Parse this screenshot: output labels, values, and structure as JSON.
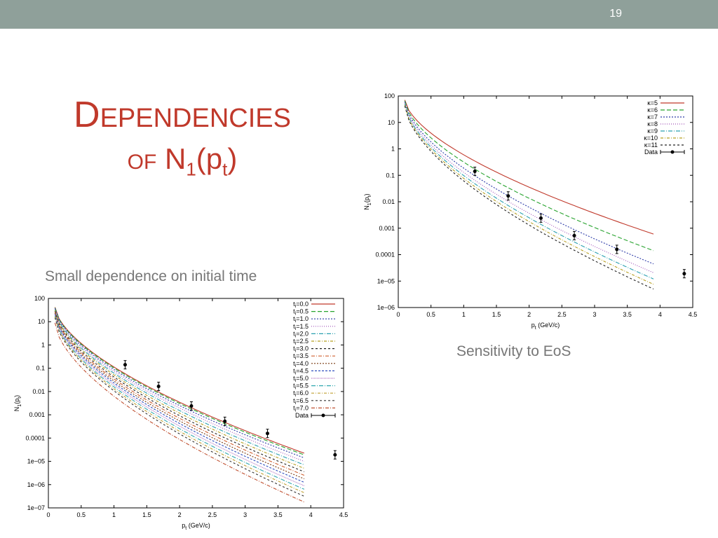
{
  "slide": {
    "number": "19",
    "title_line1": "Dependencies",
    "title_line2_prefix": "of",
    "title_line2_formula": "N",
    "title_sub1": "1",
    "title_open": "(p",
    "title_sub2": "t",
    "title_close": ")",
    "caption_left": "Small dependence on initial time",
    "caption_right": "Sensitivity to EoS"
  },
  "chart_data": [
    {
      "type": "line",
      "xlabel": "p",
      "xlabel_sub": "t",
      "xlabel_unit": " (GeV/c)",
      "ylabel": "N",
      "ylabel_sub": "1",
      "ylabel_arg": "(p",
      "ylabel_arg_sub": "t",
      "ylabel_close": ")",
      "xlim": [
        0,
        4.5
      ],
      "ylim_log10": [
        -6,
        2
      ],
      "yscale": "log",
      "x_ticks": [
        "0",
        "0.5",
        "1",
        "1.5",
        "2",
        "2.5",
        "3",
        "3.5",
        "4",
        "4.5"
      ],
      "y_ticks": [
        "1e−06",
        "1e−05",
        "0.0001",
        "0.001",
        "0.01",
        "0.1",
        "1",
        "10",
        "100"
      ],
      "legend_position": "top-right",
      "series": [
        {
          "name": "κ=5",
          "color": "#c0392b",
          "dash": "",
          "x_range": [
            0.1,
            3.9
          ],
          "log10_y": [
            1.85,
            -3.22
          ]
        },
        {
          "name": "κ=6",
          "color": "#27a32e",
          "dash": "6,3",
          "x_range": [
            0.1,
            3.9
          ],
          "log10_y": [
            1.82,
            -3.85
          ]
        },
        {
          "name": "κ=7",
          "color": "#2c3aa8",
          "dash": "2,2",
          "x_range": [
            0.1,
            3.9
          ],
          "log10_y": [
            1.78,
            -4.35
          ]
        },
        {
          "name": "κ=8",
          "color": "#a050b8",
          "dash": "1,2",
          "x_range": [
            0.1,
            3.9
          ],
          "log10_y": [
            1.74,
            -4.68
          ]
        },
        {
          "name": "κ=9",
          "color": "#2aa0b0",
          "dash": "6,2,1,2",
          "x_range": [
            0.1,
            3.9
          ],
          "log10_y": [
            1.7,
            -4.92
          ]
        },
        {
          "name": "κ=10",
          "color": "#b8a020",
          "dash": "4,2,1,2",
          "x_range": [
            0.1,
            3.9
          ],
          "log10_y": [
            1.66,
            -5.12
          ]
        },
        {
          "name": "κ=11",
          "color": "#222222",
          "dash": "3,3",
          "x_range": [
            0.1,
            3.9
          ],
          "log10_y": [
            1.62,
            -5.3
          ]
        }
      ],
      "data_points": {
        "name": "Data",
        "x": [
          1.17,
          1.68,
          2.18,
          2.69,
          3.34,
          4.37
        ],
        "log10_y": [
          -0.85,
          -1.78,
          -2.62,
          -3.28,
          -3.8,
          -4.72
        ]
      }
    },
    {
      "type": "line",
      "xlabel": "p",
      "xlabel_sub": "t",
      "xlabel_unit": " (GeV/c)",
      "ylabel": "N",
      "ylabel_sub": "1",
      "ylabel_arg": "(p",
      "ylabel_arg_sub": "t",
      "ylabel_close": ")",
      "xlim": [
        0,
        4.5
      ],
      "ylim_log10": [
        -7,
        2
      ],
      "yscale": "log",
      "x_ticks": [
        "0",
        "0.5",
        "1",
        "1.5",
        "2",
        "2.5",
        "3",
        "3.5",
        "4",
        "4.5"
      ],
      "y_ticks": [
        "1e−07",
        "1e−06",
        "1e−05",
        "0.0001",
        "0.001",
        "0.01",
        "0.1",
        "1",
        "10",
        "100"
      ],
      "legend_position": "top-right",
      "series": [
        {
          "name": "t",
          "sub": "i",
          "suffix": "=0.0",
          "color": "#c0392b",
          "dash": "",
          "x_range": [
            0.1,
            3.9
          ],
          "log10_y": [
            1.62,
            -4.65
          ]
        },
        {
          "name": "t",
          "sub": "i",
          "suffix": "=0.5",
          "color": "#27a32e",
          "dash": "6,3",
          "x_range": [
            0.1,
            3.9
          ],
          "log10_y": [
            1.6,
            -4.72
          ]
        },
        {
          "name": "t",
          "sub": "i",
          "suffix": "=1.0",
          "color": "#2c3aa8",
          "dash": "2,2",
          "x_range": [
            0.1,
            3.9
          ],
          "log10_y": [
            1.58,
            -4.85
          ]
        },
        {
          "name": "t",
          "sub": "i",
          "suffix": "=1.5",
          "color": "#a050b8",
          "dash": "1,2",
          "x_range": [
            0.1,
            3.9
          ],
          "log10_y": [
            1.55,
            -5.0
          ]
        },
        {
          "name": "t",
          "sub": "i",
          "suffix": "=2.0",
          "color": "#2aa0b0",
          "dash": "6,2,1,2",
          "x_range": [
            0.1,
            3.9
          ],
          "log10_y": [
            1.52,
            -5.15
          ]
        },
        {
          "name": "t",
          "sub": "i",
          "suffix": "=2.5",
          "color": "#b8a020",
          "dash": "4,2,1,2",
          "x_range": [
            0.1,
            3.9
          ],
          "log10_y": [
            1.49,
            -5.3
          ]
        },
        {
          "name": "t",
          "sub": "i",
          "suffix": "=3.0",
          "color": "#222222",
          "dash": "3,3",
          "x_range": [
            0.1,
            3.9
          ],
          "log10_y": [
            1.45,
            -5.45
          ]
        },
        {
          "name": "t",
          "sub": "i",
          "suffix": "=3.5",
          "color": "#d06030",
          "dash": "5,2,1,2",
          "x_range": [
            0.1,
            3.9
          ],
          "log10_y": [
            1.41,
            -5.6
          ]
        },
        {
          "name": "t",
          "sub": "i",
          "suffix": "=4.0",
          "color": "#7a3a10",
          "dash": "2,2",
          "x_range": [
            0.1,
            3.9
          ],
          "log10_y": [
            1.37,
            -5.75
          ]
        },
        {
          "name": "t",
          "sub": "i",
          "suffix": "=4.5",
          "color": "#3050c0",
          "dash": "3,2",
          "x_range": [
            0.1,
            3.9
          ],
          "log10_y": [
            1.33,
            -5.9
          ]
        },
        {
          "name": "t",
          "sub": "i",
          "suffix": "=5.0",
          "color": "#b070c0",
          "dash": "1,1",
          "x_range": [
            0.1,
            3.9
          ],
          "log10_y": [
            1.29,
            -6.05
          ]
        },
        {
          "name": "t",
          "sub": "i",
          "suffix": "=5.5",
          "color": "#30a8b0",
          "dash": "6,2,1,2",
          "x_range": [
            0.1,
            3.9
          ],
          "log10_y": [
            1.25,
            -6.2
          ]
        },
        {
          "name": "t",
          "sub": "i",
          "suffix": "=6.0",
          "color": "#c0a030",
          "dash": "4,2,1,2",
          "x_range": [
            0.1,
            3.9
          ],
          "log10_y": [
            1.21,
            -6.35
          ]
        },
        {
          "name": "t",
          "sub": "i",
          "suffix": "=6.5",
          "color": "#333333",
          "dash": "3,3",
          "x_range": [
            0.1,
            3.9
          ],
          "log10_y": [
            1.17,
            -6.5
          ]
        },
        {
          "name": "t",
          "sub": "i",
          "suffix": "=7.0",
          "color": "#c05030",
          "dash": "5,2,1,2",
          "x_range": [
            0.1,
            3.9
          ],
          "log10_y": [
            0.95,
            -6.75
          ]
        }
      ],
      "data_points": {
        "name": "Data",
        "x": [
          1.17,
          1.68,
          2.18,
          2.69,
          3.34,
          4.37
        ],
        "log10_y": [
          -0.85,
          -1.78,
          -2.62,
          -3.28,
          -3.8,
          -4.72
        ]
      }
    }
  ]
}
